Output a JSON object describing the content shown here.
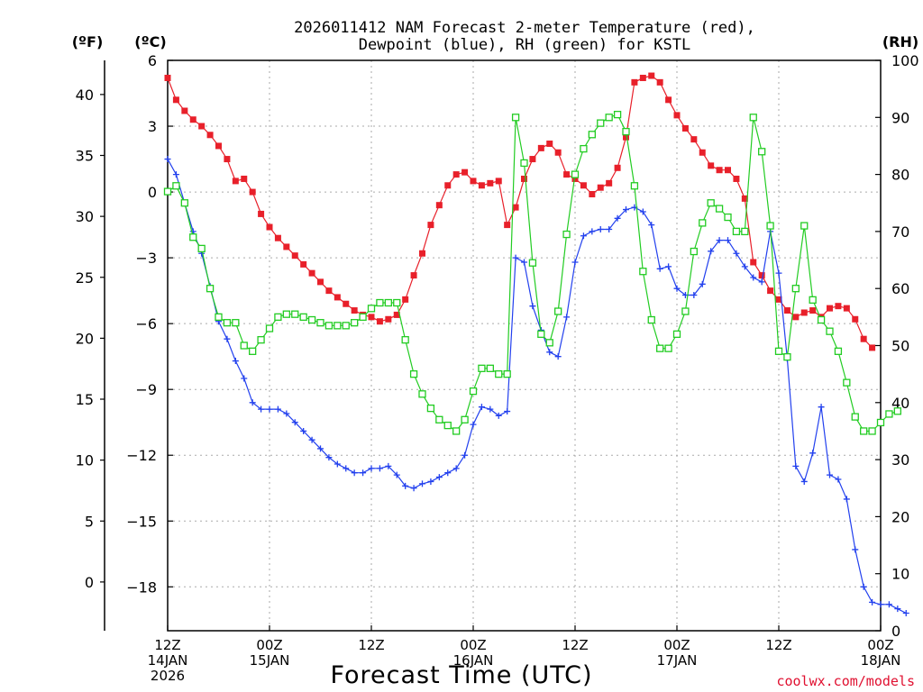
{
  "chart_data": {
    "type": "line",
    "title_lines": [
      "2026011412 NAM Forecast 2-meter Temperature (red),",
      "Dewpoint (blue), RH (green) for KSTL"
    ],
    "units": {
      "fahrenheit": "(ºF)",
      "celsius": "(ºC)",
      "rh": "(RH)"
    },
    "xlabel": "Forecast Time (UTC)",
    "credit": "coolwx.com/models",
    "x_range_hours": [
      0,
      84
    ],
    "x_ticks": [
      {
        "hour": 0,
        "lines": [
          "12Z",
          "14JAN",
          "2026"
        ]
      },
      {
        "hour": 12,
        "lines": [
          "00Z",
          "15JAN"
        ]
      },
      {
        "hour": 24,
        "lines": [
          "12Z"
        ]
      },
      {
        "hour": 36,
        "lines": [
          "00Z",
          "16JAN"
        ]
      },
      {
        "hour": 48,
        "lines": [
          "12Z"
        ]
      },
      {
        "hour": 60,
        "lines": [
          "00Z",
          "17JAN"
        ]
      },
      {
        "hour": 72,
        "lines": [
          "12Z"
        ]
      },
      {
        "hour": 84,
        "lines": [
          "00Z",
          "18JAN"
        ]
      }
    ],
    "celsius_axis": {
      "range": [
        -20,
        6
      ],
      "ticks": [
        6,
        3,
        0,
        -3,
        -6,
        -9,
        -12,
        -15,
        -18
      ]
    },
    "fahrenheit_axis": {
      "ticks": [
        40,
        35,
        30,
        25,
        20,
        15,
        10,
        5,
        0
      ]
    },
    "rh_axis": {
      "range": [
        0,
        100
      ],
      "ticks": [
        100,
        90,
        80,
        70,
        60,
        50,
        40,
        30,
        20,
        10,
        0
      ]
    },
    "series": [
      {
        "name": "2-meter Temperature",
        "units": "°C",
        "color": "#e8202a",
        "marker": "filled-square",
        "points": [
          [
            0,
            5.2
          ],
          [
            1,
            4.2
          ],
          [
            2,
            3.7
          ],
          [
            3,
            3.3
          ],
          [
            4,
            3.0
          ],
          [
            5,
            2.6
          ],
          [
            6,
            2.1
          ],
          [
            7,
            1.5
          ],
          [
            8,
            0.5
          ],
          [
            9,
            0.6
          ],
          [
            10,
            0.0
          ],
          [
            11,
            -1.0
          ],
          [
            12,
            -1.6
          ],
          [
            13,
            -2.1
          ],
          [
            14,
            -2.5
          ],
          [
            15,
            -2.9
          ],
          [
            16,
            -3.3
          ],
          [
            17,
            -3.7
          ],
          [
            18,
            -4.1
          ],
          [
            19,
            -4.5
          ],
          [
            20,
            -4.8
          ],
          [
            21,
            -5.1
          ],
          [
            22,
            -5.4
          ],
          [
            23,
            -5.6
          ],
          [
            24,
            -5.7
          ],
          [
            25,
            -5.9
          ],
          [
            26,
            -5.8
          ],
          [
            27,
            -5.6
          ],
          [
            28,
            -4.9
          ],
          [
            29,
            -3.8
          ],
          [
            30,
            -2.8
          ],
          [
            31,
            -1.5
          ],
          [
            32,
            -0.6
          ],
          [
            33,
            0.3
          ],
          [
            34,
            0.8
          ],
          [
            35,
            0.9
          ],
          [
            36,
            0.5
          ],
          [
            37,
            0.3
          ],
          [
            38,
            0.4
          ],
          [
            39,
            0.5
          ],
          [
            40,
            -1.5
          ],
          [
            41,
            -0.7
          ],
          [
            42,
            0.6
          ],
          [
            43,
            1.5
          ],
          [
            44,
            2.0
          ],
          [
            45,
            2.2
          ],
          [
            46,
            1.8
          ],
          [
            47,
            0.8
          ],
          [
            48,
            0.6
          ],
          [
            49,
            0.3
          ],
          [
            50,
            -0.1
          ],
          [
            51,
            0.2
          ],
          [
            52,
            0.4
          ],
          [
            53,
            1.1
          ],
          [
            54,
            2.5
          ],
          [
            55,
            5.0
          ],
          [
            56,
            5.2
          ],
          [
            57,
            5.3
          ],
          [
            58,
            5.0
          ],
          [
            59,
            4.2
          ],
          [
            60,
            3.5
          ],
          [
            61,
            2.9
          ],
          [
            62,
            2.4
          ],
          [
            63,
            1.8
          ],
          [
            64,
            1.2
          ],
          [
            65,
            1.0
          ],
          [
            66,
            1.0
          ],
          [
            67,
            0.6
          ],
          [
            68,
            -0.3
          ],
          [
            69,
            -3.2
          ],
          [
            70,
            -3.8
          ],
          [
            71,
            -4.5
          ],
          [
            72,
            -4.9
          ],
          [
            73,
            -5.4
          ],
          [
            74,
            -5.7
          ],
          [
            75,
            -5.5
          ],
          [
            76,
            -5.4
          ],
          [
            77,
            -5.7
          ],
          [
            78,
            -5.3
          ],
          [
            79,
            -5.2
          ],
          [
            80,
            -5.3
          ],
          [
            81,
            -5.8
          ],
          [
            82,
            -6.7
          ],
          [
            83,
            -7.1
          ]
        ]
      },
      {
        "name": "Dewpoint",
        "units": "°C",
        "color": "#2240ee",
        "marker": "plus",
        "points": [
          [
            0,
            1.5
          ],
          [
            1,
            0.8
          ],
          [
            2,
            -0.5
          ],
          [
            3,
            -1.8
          ],
          [
            4,
            -2.8
          ],
          [
            5,
            -4.3
          ],
          [
            6,
            -5.9
          ],
          [
            7,
            -6.7
          ],
          [
            8,
            -7.7
          ],
          [
            9,
            -8.5
          ],
          [
            10,
            -9.6
          ],
          [
            11,
            -9.9
          ],
          [
            12,
            -9.9
          ],
          [
            13,
            -9.9
          ],
          [
            14,
            -10.1
          ],
          [
            15,
            -10.5
          ],
          [
            16,
            -10.9
          ],
          [
            17,
            -11.3
          ],
          [
            18,
            -11.7
          ],
          [
            19,
            -12.1
          ],
          [
            20,
            -12.4
          ],
          [
            21,
            -12.6
          ],
          [
            22,
            -12.8
          ],
          [
            23,
            -12.8
          ],
          [
            24,
            -12.6
          ],
          [
            25,
            -12.6
          ],
          [
            26,
            -12.5
          ],
          [
            27,
            -12.9
          ],
          [
            28,
            -13.4
          ],
          [
            29,
            -13.5
          ],
          [
            30,
            -13.3
          ],
          [
            31,
            -13.2
          ],
          [
            32,
            -13.0
          ],
          [
            33,
            -12.8
          ],
          [
            34,
            -12.6
          ],
          [
            35,
            -12.0
          ],
          [
            36,
            -10.6
          ],
          [
            37,
            -9.8
          ],
          [
            38,
            -9.9
          ],
          [
            39,
            -10.2
          ],
          [
            40,
            -10.0
          ],
          [
            41,
            -3.0
          ],
          [
            42,
            -3.2
          ],
          [
            43,
            -5.2
          ],
          [
            44,
            -6.3
          ],
          [
            45,
            -7.3
          ],
          [
            46,
            -7.5
          ],
          [
            47,
            -5.7
          ],
          [
            48,
            -3.2
          ],
          [
            49,
            -2.0
          ],
          [
            50,
            -1.8
          ],
          [
            51,
            -1.7
          ],
          [
            52,
            -1.7
          ],
          [
            53,
            -1.2
          ],
          [
            54,
            -0.8
          ],
          [
            55,
            -0.7
          ],
          [
            56,
            -0.9
          ],
          [
            57,
            -1.5
          ],
          [
            58,
            -3.5
          ],
          [
            59,
            -3.4
          ],
          [
            60,
            -4.4
          ],
          [
            61,
            -4.7
          ],
          [
            62,
            -4.7
          ],
          [
            63,
            -4.2
          ],
          [
            64,
            -2.7
          ],
          [
            65,
            -2.2
          ],
          [
            66,
            -2.2
          ],
          [
            67,
            -2.8
          ],
          [
            68,
            -3.4
          ],
          [
            69,
            -3.9
          ],
          [
            70,
            -4.1
          ],
          [
            71,
            -1.8
          ],
          [
            72,
            -3.7
          ],
          [
            73,
            -7.6
          ],
          [
            74,
            -12.5
          ],
          [
            75,
            -13.2
          ],
          [
            76,
            -11.9
          ],
          [
            77,
            -9.8
          ],
          [
            78,
            -12.9
          ],
          [
            79,
            -13.1
          ],
          [
            80,
            -14.0
          ],
          [
            81,
            -16.3
          ],
          [
            82,
            -18.0
          ],
          [
            83,
            -18.7
          ],
          [
            84,
            -18.8
          ],
          [
            85,
            -18.8
          ],
          [
            86,
            -19.0
          ],
          [
            87,
            -19.2
          ]
        ]
      },
      {
        "name": "RH",
        "units": "%",
        "color": "#22cc22",
        "marker": "open-square",
        "points": [
          [
            0,
            77
          ],
          [
            1,
            78
          ],
          [
            2,
            75
          ],
          [
            3,
            69
          ],
          [
            4,
            67
          ],
          [
            5,
            60
          ],
          [
            6,
            55
          ],
          [
            7,
            54
          ],
          [
            8,
            54
          ],
          [
            9,
            50
          ],
          [
            10,
            49
          ],
          [
            11,
            51
          ],
          [
            12,
            53
          ],
          [
            13,
            55
          ],
          [
            14,
            55.5
          ],
          [
            15,
            55.5
          ],
          [
            16,
            55
          ],
          [
            17,
            54.5
          ],
          [
            18,
            54
          ],
          [
            19,
            53.5
          ],
          [
            20,
            53.5
          ],
          [
            21,
            53.5
          ],
          [
            22,
            54
          ],
          [
            23,
            55
          ],
          [
            24,
            56.5
          ],
          [
            25,
            57.5
          ],
          [
            26,
            57.5
          ],
          [
            27,
            57.5
          ],
          [
            28,
            51
          ],
          [
            29,
            45
          ],
          [
            30,
            41.5
          ],
          [
            31,
            39
          ],
          [
            32,
            37
          ],
          [
            33,
            36
          ],
          [
            34,
            35
          ],
          [
            35,
            37
          ],
          [
            36,
            42
          ],
          [
            37,
            46
          ],
          [
            38,
            46
          ],
          [
            39,
            45
          ],
          [
            40,
            45
          ],
          [
            41,
            90
          ],
          [
            42,
            82
          ],
          [
            43,
            64.5
          ],
          [
            44,
            52
          ],
          [
            45,
            50.5
          ],
          [
            46,
            56
          ],
          [
            47,
            69.5
          ],
          [
            48,
            80
          ],
          [
            49,
            84.5
          ],
          [
            50,
            87
          ],
          [
            51,
            89
          ],
          [
            52,
            90
          ],
          [
            53,
            90.5
          ],
          [
            54,
            87.5
          ],
          [
            55,
            78
          ],
          [
            56,
            63
          ],
          [
            57,
            54.5
          ],
          [
            58,
            49.5
          ],
          [
            59,
            49.5
          ],
          [
            60,
            52
          ],
          [
            61,
            56
          ],
          [
            62,
            66.5
          ],
          [
            63,
            71.5
          ],
          [
            64,
            75
          ],
          [
            65,
            74
          ],
          [
            66,
            72.5
          ],
          [
            67,
            70
          ],
          [
            68,
            70
          ],
          [
            69,
            90
          ],
          [
            70,
            84
          ],
          [
            71,
            71
          ],
          [
            72,
            49
          ],
          [
            73,
            48
          ],
          [
            74,
            60
          ],
          [
            75,
            71
          ],
          [
            76,
            58
          ],
          [
            77,
            54.5
          ],
          [
            78,
            52.5
          ],
          [
            79,
            49
          ],
          [
            80,
            43.5
          ],
          [
            81,
            37.5
          ],
          [
            82,
            35
          ],
          [
            83,
            35
          ],
          [
            84,
            36.5
          ],
          [
            85,
            38
          ],
          [
            86,
            38.5
          ]
        ]
      }
    ]
  }
}
